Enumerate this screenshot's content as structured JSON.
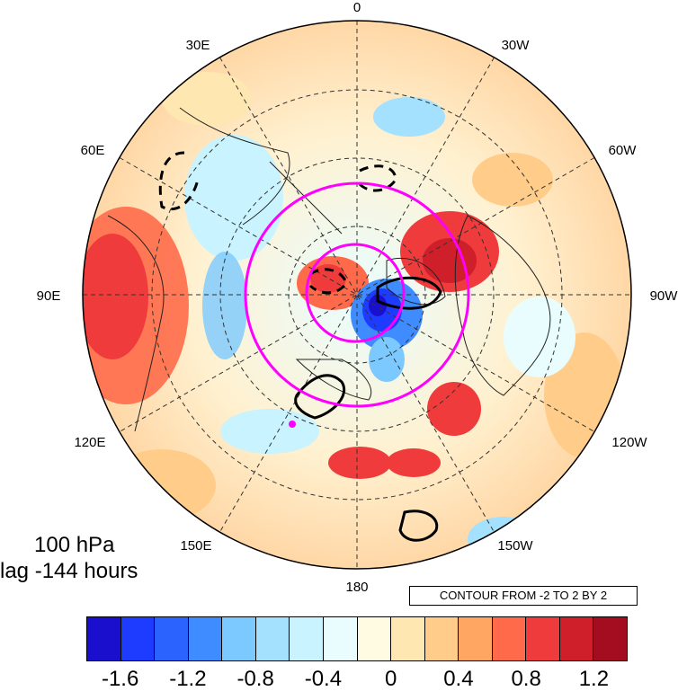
{
  "map": {
    "projection": "north polar stereographic",
    "lon_labels": [
      "0",
      "30W",
      "60W",
      "90W",
      "120W",
      "150W",
      "180",
      "150E",
      "120E",
      "90E",
      "60E",
      "30E"
    ],
    "level_label": "100 hPa",
    "lag_label": "lag -144 hours",
    "contour_note": "CONTOUR FROM -2 TO 2 BY 2",
    "overlay_color": "#ff00ff",
    "contour_color": "#000000"
  },
  "colorbar": {
    "colors": [
      "#1a0fcc",
      "#1e3cff",
      "#2b63ff",
      "#3e8cff",
      "#7cc9ff",
      "#a3e1ff",
      "#c8f3ff",
      "#e9fdff",
      "#fffbe2",
      "#ffe7b2",
      "#ffcc8a",
      "#ffa662",
      "#ff6b4a",
      "#ef3b3b",
      "#cf1f2b",
      "#a40c20"
    ],
    "tick_labels": [
      "-1.6",
      "-1.2",
      "-0.8",
      "-0.4",
      "0",
      "0.4",
      "0.8",
      "1.2"
    ]
  }
}
